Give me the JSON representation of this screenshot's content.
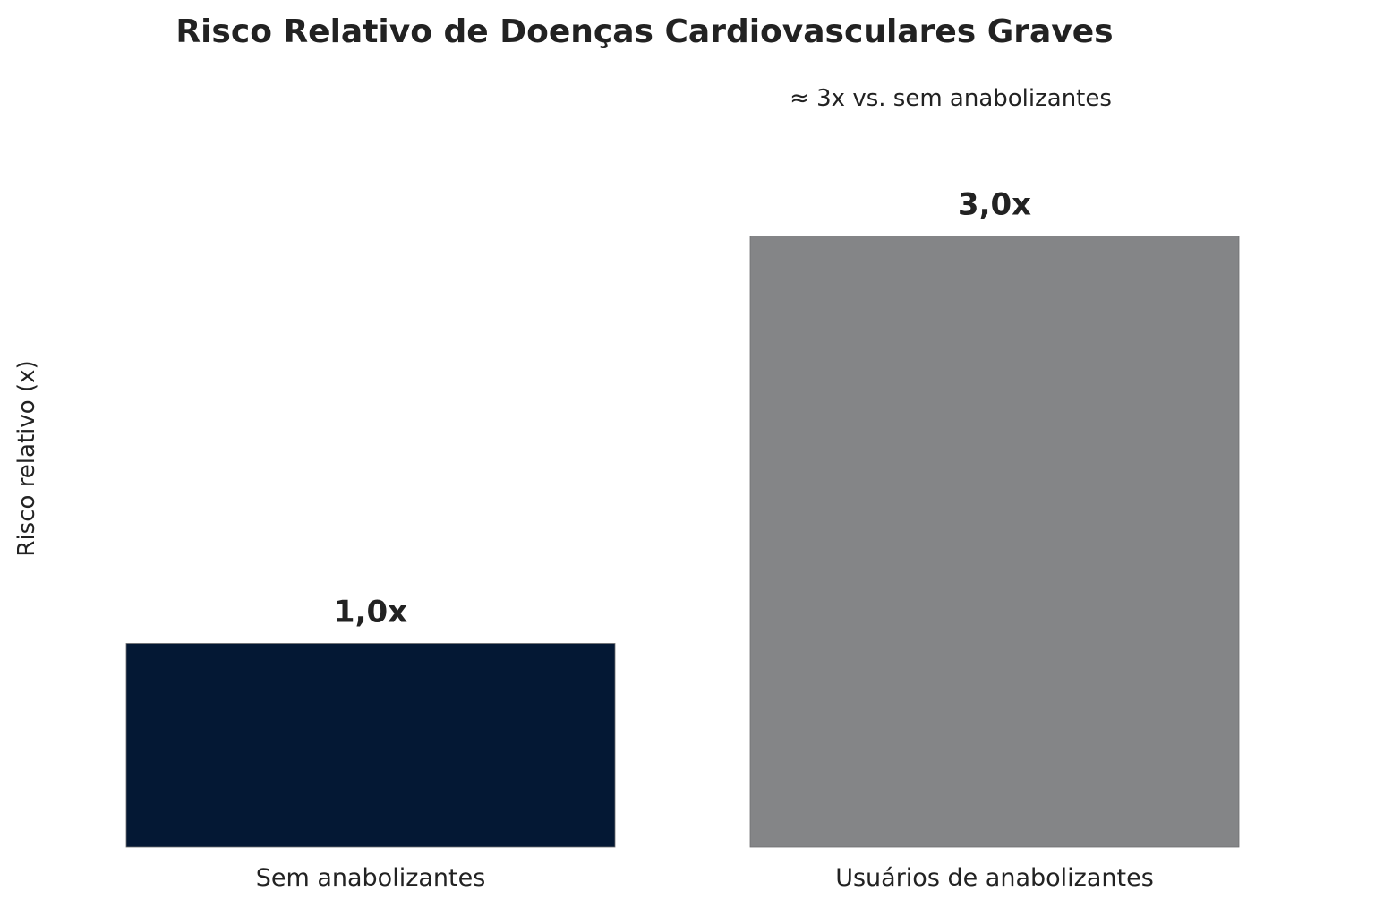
{
  "chart_data": {
    "type": "bar",
    "title": "Risco Relativo de Doenças Cardiovasculares Graves",
    "ylabel": "Risco relativo (x)",
    "xlabel": "",
    "categories": [
      "Sem anabolizantes",
      "Usuários de anabolizantes"
    ],
    "values": [
      1.0,
      3.0
    ],
    "value_labels": [
      "1,0x",
      "3,0x"
    ],
    "colors": [
      "#041834",
      "#848587"
    ],
    "annotation": "≈ 3x vs. sem anabolizantes",
    "ylim": [
      0,
      4.2
    ],
    "grid": false,
    "legend": "none"
  }
}
